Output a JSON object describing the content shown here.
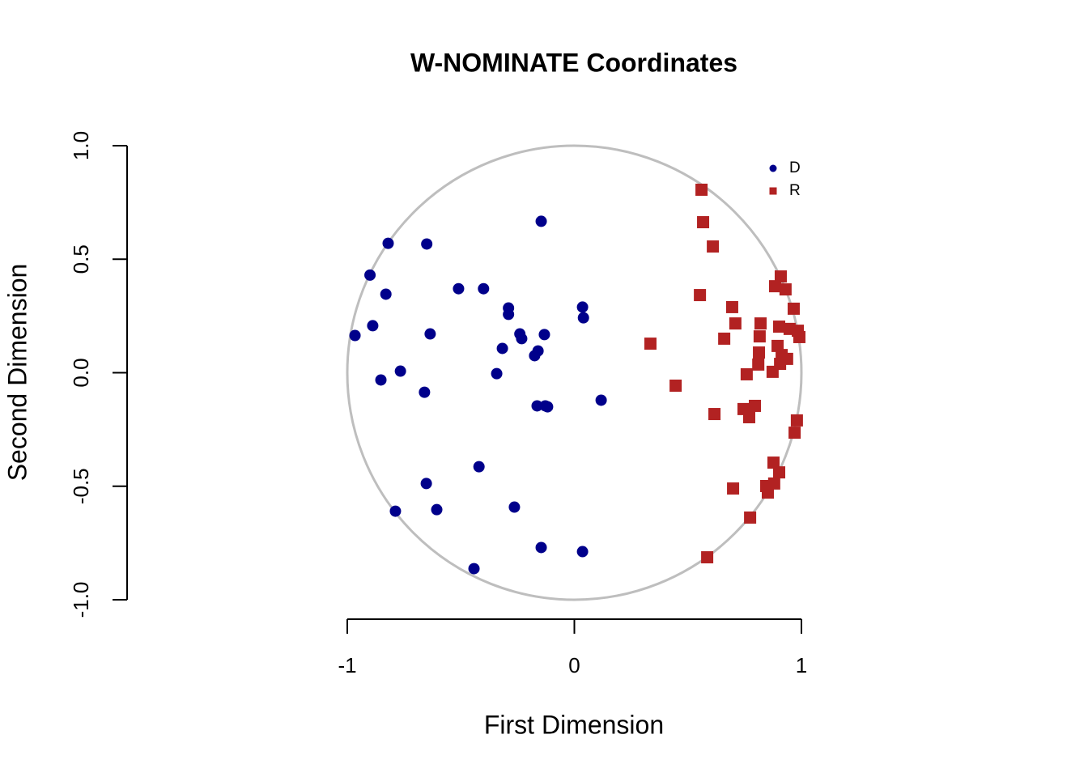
{
  "chart_data": {
    "type": "scatter",
    "title": "W-NOMINATE Coordinates",
    "x_label": "First Dimension",
    "y_label": "Second Dimension",
    "xlim": [
      -1,
      1
    ],
    "ylim": [
      -1,
      1
    ],
    "xticks": [
      -1,
      0,
      1
    ],
    "yticks": [
      {
        "value": -1,
        "label": "-1.0"
      },
      -0.5,
      {
        "value": 0,
        "label": "0.0"
      },
      0.5,
      {
        "value": 1,
        "label": "1.0"
      }
    ],
    "legend_position": "topright",
    "series": [
      {
        "name": "D",
        "color": "#00008b",
        "marker": "circle",
        "x": [
          -0.146,
          -0.82,
          -0.65,
          -0.9,
          -0.83,
          -0.51,
          -0.4,
          -0.29,
          -0.29,
          0.036,
          0.04,
          -0.966,
          -0.888,
          -0.635,
          -0.24,
          -0.232,
          -0.132,
          -0.317,
          -0.16,
          -0.175,
          -0.342,
          -0.766,
          -0.852,
          -0.66,
          0.118,
          -0.164,
          -0.128,
          -0.118,
          -0.42,
          -0.652,
          -0.788,
          -0.606,
          -0.264,
          -0.146,
          0.036,
          -0.442
        ],
        "values": [
          0.667,
          0.57,
          0.567,
          0.43,
          0.346,
          0.37,
          0.37,
          0.285,
          0.257,
          0.289,
          0.242,
          0.164,
          0.207,
          0.171,
          0.171,
          0.15,
          0.168,
          0.107,
          0.096,
          0.075,
          -0.004,
          0.007,
          -0.032,
          -0.086,
          -0.121,
          -0.146,
          -0.146,
          -0.15,
          -0.414,
          -0.488,
          -0.61,
          -0.603,
          -0.592,
          -0.77,
          -0.788,
          -0.863
        ]
      },
      {
        "name": "R",
        "color": "#b22222",
        "marker": "square",
        "x": [
          0.56,
          0.567,
          0.61,
          0.553,
          0.909,
          0.884,
          0.93,
          0.966,
          0.695,
          0.709,
          0.82,
          0.902,
          0.948,
          0.984,
          0.991,
          0.816,
          0.66,
          0.335,
          0.895,
          0.813,
          0.913,
          0.937,
          0.81,
          0.906,
          0.873,
          0.759,
          0.446,
          0.745,
          0.795,
          0.77,
          0.617,
          0.98,
          0.97,
          0.877,
          0.902,
          0.88,
          0.845,
          0.852,
          0.699,
          0.774,
          0.585
        ],
        "values": [
          0.806,
          0.663,
          0.556,
          0.342,
          0.424,
          0.381,
          0.367,
          0.282,
          0.289,
          0.217,
          0.217,
          0.203,
          0.193,
          0.185,
          0.157,
          0.16,
          0.15,
          0.128,
          0.118,
          0.089,
          0.078,
          0.061,
          0.036,
          0.039,
          0.004,
          -0.007,
          -0.057,
          -0.16,
          -0.146,
          -0.196,
          -0.182,
          -0.21,
          -0.264,
          -0.396,
          -0.439,
          -0.488,
          -0.499,
          -0.528,
          -0.51,
          -0.638,
          -0.813
        ]
      }
    ]
  }
}
